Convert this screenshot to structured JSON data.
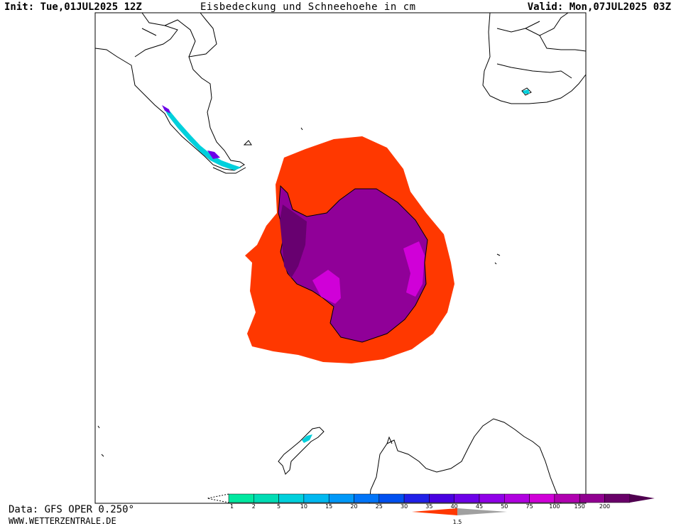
{
  "header": {
    "init": "Init: Tue,01JUL2025 12Z",
    "title": "Eisbedeckung und Schneehoehe in cm",
    "valid": "Valid: Mon,07JUL2025 03Z"
  },
  "footer": {
    "data_source": "Data: GFS OPER 0.250°",
    "site": "WWW.WETTERZENTRALE.DE"
  },
  "legend": {
    "snow_depth_bins": [
      {
        "label": "1",
        "color": "#00e8a0"
      },
      {
        "label": "2",
        "color": "#00dcb4"
      },
      {
        "label": "5",
        "color": "#00d0dc"
      },
      {
        "label": "10",
        "color": "#00b8f0"
      },
      {
        "label": "15",
        "color": "#0098f8"
      },
      {
        "label": "20",
        "color": "#0074f8"
      },
      {
        "label": "25",
        "color": "#0050f0"
      },
      {
        "label": "30",
        "color": "#2020e8"
      },
      {
        "label": "35",
        "color": "#4800e0"
      },
      {
        "label": "40",
        "color": "#6c00e8"
      },
      {
        "label": "45",
        "color": "#9000e8"
      },
      {
        "label": "50",
        "color": "#b000e0"
      },
      {
        "label": "75",
        "color": "#d000d8"
      },
      {
        "label": "100",
        "color": "#b000b0"
      },
      {
        "label": "150",
        "color": "#900090"
      },
      {
        "label": "200",
        "color": "#680068"
      }
    ],
    "sea_ice_bins": [
      {
        "label": "1.5",
        "color": "#ff3800"
      }
    ],
    "sea_ice_grey": "#a0a0a0",
    "over_color": "#500050"
  },
  "map": {
    "sea_ice_color": "#ff3800",
    "ice_sheet_color": "#900098",
    "ice_sheet_high_color": "#d000d8",
    "ice_sheet_deep_color": "#680070",
    "coast_color": "#000000"
  }
}
